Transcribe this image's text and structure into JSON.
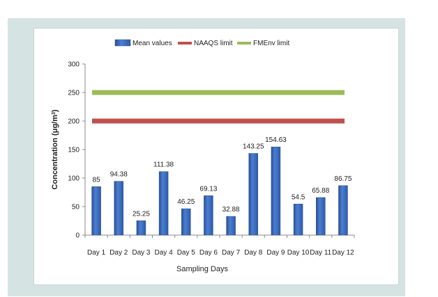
{
  "chart_data": {
    "type": "bar",
    "xlabel": "Sampling Days",
    "ylabel_main": "Concentration (μg/m",
    "ylabel_sup": "3",
    "ylabel_tail": ")",
    "ylim": [
      0,
      300
    ],
    "yticks": [
      "0",
      "50",
      "100",
      "150",
      "200",
      "250",
      "300"
    ],
    "categories": [
      "Day 1",
      "Day 2",
      "Day 3",
      "Day 4",
      "Day 5",
      "Day 6",
      "Day 7",
      "Day 8",
      "Day 9",
      "Day 10",
      "Day 11",
      "Day 12"
    ],
    "series": [
      {
        "name": "Mean values",
        "values": [
          85,
          94.38,
          25.25,
          111.38,
          46.25,
          69.13,
          32.88,
          143.25,
          154.63,
          54.5,
          65.88,
          86.75
        ],
        "labels": [
          "85",
          "94.38",
          "25.25",
          "111.38",
          "46.25",
          "69.13",
          "32.88",
          "143.25",
          "154.63",
          "54.5",
          "65.88",
          "86.75"
        ],
        "color": "#3f6fc0"
      }
    ],
    "reference_lines": [
      {
        "name": "NAAQS limit",
        "value": 200,
        "color": "#c0504d"
      },
      {
        "name": "FMEnv limit",
        "value": 250,
        "color": "#9bbb59"
      }
    ],
    "legend": {
      "position": "top",
      "items": [
        "Mean values",
        "NAAQS limit",
        "FMEnv limit"
      ]
    },
    "grid": false
  }
}
